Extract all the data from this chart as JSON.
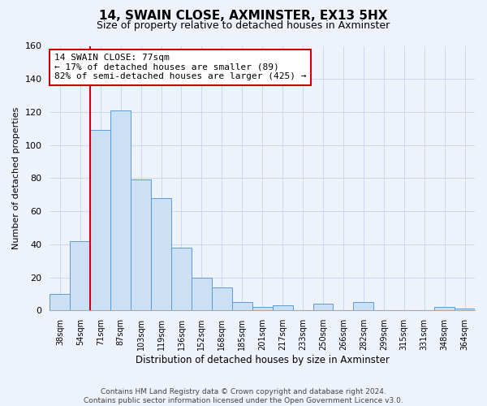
{
  "title": "14, SWAIN CLOSE, AXMINSTER, EX13 5HX",
  "subtitle": "Size of property relative to detached houses in Axminster",
  "xlabel": "Distribution of detached houses by size in Axminster",
  "ylabel": "Number of detached properties",
  "bar_labels": [
    "38sqm",
    "54sqm",
    "71sqm",
    "87sqm",
    "103sqm",
    "119sqm",
    "136sqm",
    "152sqm",
    "168sqm",
    "185sqm",
    "201sqm",
    "217sqm",
    "233sqm",
    "250sqm",
    "266sqm",
    "282sqm",
    "299sqm",
    "315sqm",
    "331sqm",
    "348sqm",
    "364sqm"
  ],
  "bar_values": [
    10,
    42,
    109,
    121,
    79,
    68,
    38,
    20,
    14,
    5,
    2,
    3,
    0,
    4,
    0,
    5,
    0,
    0,
    0,
    2,
    1
  ],
  "bar_color": "#cce0f5",
  "bar_edge_color": "#5b9bd5",
  "ylim": [
    0,
    160
  ],
  "yticks": [
    0,
    20,
    40,
    60,
    80,
    100,
    120,
    140,
    160
  ],
  "property_line_x": 2.0,
  "property_line_color": "#cc0000",
  "annotation_title": "14 SWAIN CLOSE: 77sqm",
  "annotation_line2": "← 17% of detached houses are smaller (89)",
  "annotation_line3": "82% of semi-detached houses are larger (425) →",
  "annotation_box_color": "#ffffff",
  "annotation_box_edge": "#cc0000",
  "footnote": "Contains HM Land Registry data © Crown copyright and database right 2024.\nContains public sector information licensed under the Open Government Licence v3.0.",
  "grid_color": "#ccd8ee",
  "background_color": "#edf2fb"
}
